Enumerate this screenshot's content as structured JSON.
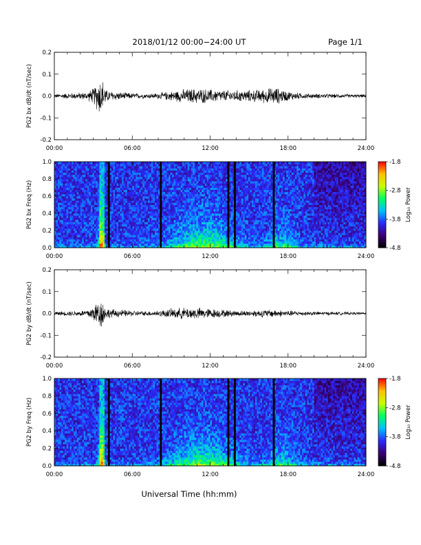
{
  "header": {
    "title": "2018/01/12  00:00−24:00 UT",
    "page": "Page 1/1"
  },
  "footer": {
    "xlabel": "Universal Time (hh:mm)"
  },
  "colors": {
    "axis": "#000000",
    "trace": "#000000",
    "gap": "#000000"
  },
  "colorbar": {
    "label": "Log₁₀ Power",
    "tick_labels": [
      "-1.8",
      "-2.8",
      "-3.8",
      "-4.8"
    ],
    "tick_values": [
      -1.8,
      -2.8,
      -3.8,
      -4.8
    ],
    "range": [
      -4.8,
      -1.8
    ],
    "stops": [
      "#000000",
      "#3a0070",
      "#2a2aff",
      "#00c0ff",
      "#00ff60",
      "#c8ff00",
      "#ffc000",
      "#ff0000"
    ]
  },
  "chart_data": [
    {
      "type": "line",
      "ylabel": "PG2 bx dB/dt (nT/sec)",
      "xlim": [
        0,
        24
      ],
      "ylim": [
        -0.2,
        0.2
      ],
      "x_tick_labels": [
        "00:00",
        "06:00",
        "12:00",
        "18:00",
        "24:00"
      ],
      "y_tick_labels": [
        "0.2",
        "0.1",
        "0.0",
        "-0.1",
        "-0.2"
      ],
      "y_tick_values": [
        0.2,
        0.1,
        0.0,
        -0.1,
        -0.2
      ],
      "envelope": {
        "x": [
          0,
          1,
          2,
          2.5,
          3,
          3.5,
          3.7,
          4,
          5,
          6,
          7,
          8,
          9,
          10,
          11,
          12,
          13,
          14,
          15,
          16,
          17,
          18,
          19,
          20,
          22,
          24
        ],
        "amp": [
          0.01,
          0.015,
          0.018,
          0.02,
          0.04,
          0.1,
          0.09,
          0.03,
          0.02,
          0.015,
          0.012,
          0.015,
          0.025,
          0.035,
          0.04,
          0.035,
          0.03,
          0.03,
          0.03,
          0.035,
          0.045,
          0.025,
          0.015,
          0.012,
          0.01,
          0.008
        ]
      }
    },
    {
      "type": "heatmap",
      "ylabel": "PG2 bx Freq (Hz)",
      "xlim": [
        0,
        24
      ],
      "ylim": [
        0.0,
        1.0
      ],
      "x_tick_labels": [
        "00:00",
        "06:00",
        "12:00",
        "18:00",
        "24:00"
      ],
      "y_tick_labels": [
        "1.0",
        "0.8",
        "0.6",
        "0.4",
        "0.2",
        "0.0"
      ],
      "y_tick_values": [
        1.0,
        0.8,
        0.6,
        0.4,
        0.2,
        0.0
      ],
      "gaps_hours": [
        4.2,
        8.2,
        13.4,
        13.9,
        16.9
      ]
    },
    {
      "type": "line",
      "ylabel": "PG2 by dB/dt (nT/sec)",
      "xlim": [
        0,
        24
      ],
      "ylim": [
        -0.2,
        0.2
      ],
      "x_tick_labels": [
        "00:00",
        "06:00",
        "12:00",
        "18:00",
        "24:00"
      ],
      "y_tick_labels": [
        "0.2",
        "0.1",
        "0.0",
        "-0.1",
        "-0.2"
      ],
      "y_tick_values": [
        0.2,
        0.1,
        0.0,
        -0.1,
        -0.2
      ],
      "envelope": {
        "x": [
          0,
          1,
          2,
          2.5,
          3,
          3.5,
          3.7,
          4,
          5,
          6,
          7,
          8,
          9,
          10,
          11,
          12,
          13,
          14,
          15,
          16,
          17,
          18,
          19,
          20,
          22,
          24
        ],
        "amp": [
          0.01,
          0.012,
          0.015,
          0.02,
          0.04,
          0.08,
          0.07,
          0.025,
          0.02,
          0.015,
          0.012,
          0.015,
          0.025,
          0.03,
          0.03,
          0.025,
          0.02,
          0.015,
          0.015,
          0.02,
          0.02,
          0.015,
          0.012,
          0.01,
          0.008,
          0.006
        ]
      }
    },
    {
      "type": "heatmap",
      "ylabel": "PG2 by Freq (Hz)",
      "xlim": [
        0,
        24
      ],
      "ylim": [
        0.0,
        1.0
      ],
      "x_tick_labels": [
        "00:00",
        "06:00",
        "12:00",
        "18:00",
        "24:00"
      ],
      "y_tick_labels": [
        "1.0",
        "0.8",
        "0.6",
        "0.4",
        "0.2",
        "0.0"
      ],
      "y_tick_values": [
        1.0,
        0.8,
        0.6,
        0.4,
        0.2,
        0.0
      ],
      "gaps_hours": [
        4.2,
        8.2,
        13.4,
        13.9,
        16.9
      ]
    }
  ]
}
